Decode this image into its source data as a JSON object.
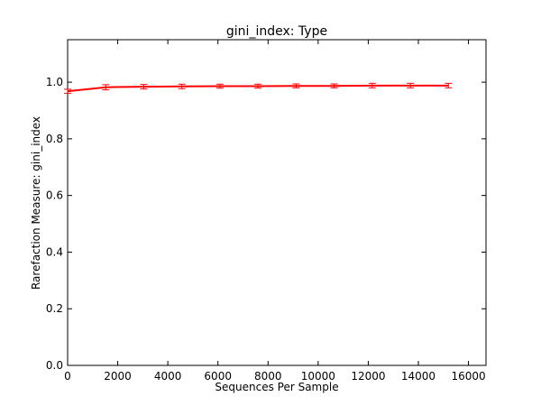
{
  "chart_data": {
    "type": "line",
    "title": "gini_index: Type",
    "xlabel": "Sequences Per Sample",
    "ylabel": "Rarefaction Measure: gini_index",
    "xlim": [
      0,
      16700
    ],
    "ylim": [
      0.0,
      1.15
    ],
    "xticks": [
      0,
      2000,
      4000,
      6000,
      8000,
      10000,
      12000,
      14000,
      16000
    ],
    "yticks": [
      0.0,
      0.2,
      0.4,
      0.6,
      0.8,
      1.0
    ],
    "xtick_labels": [
      "0",
      "2000",
      "4000",
      "6000",
      "8000",
      "10000",
      "12000",
      "14000",
      "16000"
    ],
    "ytick_labels": [
      "0.0",
      "0.2",
      "0.4",
      "0.6",
      "0.8",
      "1.0"
    ],
    "grid": false,
    "series": [
      {
        "color": "#ff0000",
        "x": [
          0,
          1520,
          3040,
          4560,
          6080,
          7600,
          9120,
          10640,
          12160,
          13680,
          15200
        ],
        "y": [
          0.968,
          0.982,
          0.984,
          0.985,
          0.986,
          0.986,
          0.987,
          0.987,
          0.988,
          0.988,
          0.988
        ],
        "err": [
          0.007,
          0.009,
          0.008,
          0.008,
          0.007,
          0.007,
          0.007,
          0.007,
          0.008,
          0.008,
          0.008
        ]
      }
    ]
  }
}
